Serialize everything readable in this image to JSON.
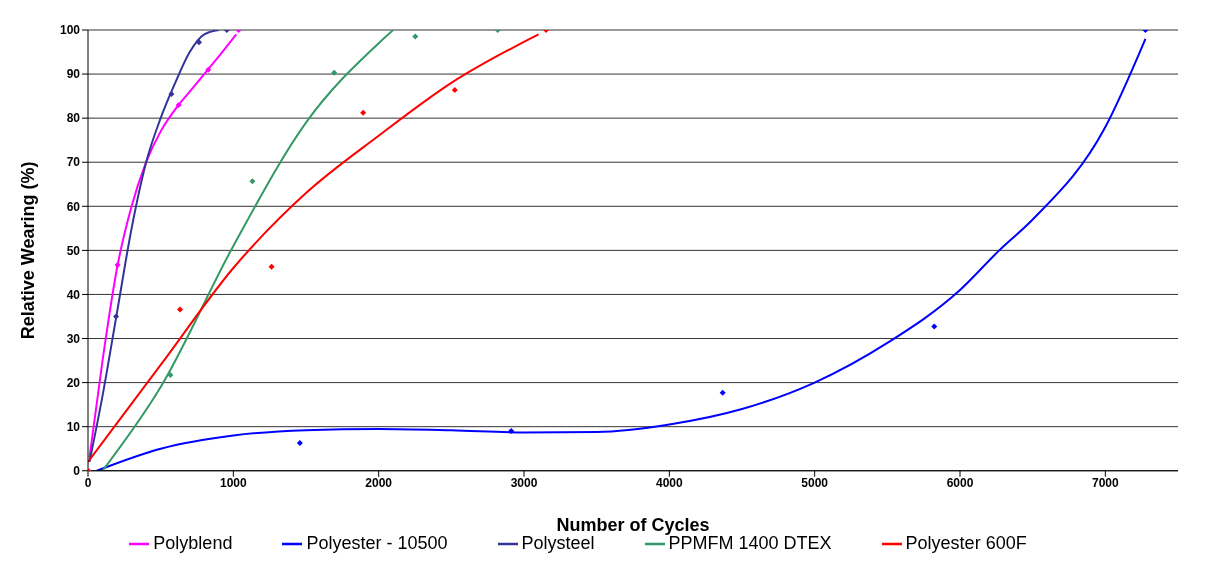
{
  "chart_data": {
    "type": "scatter",
    "xlabel": "Number of Cycles",
    "ylabel": "Relative Wearing (%)",
    "xlim": [
      0,
      7500
    ],
    "xticks": [
      0,
      1000,
      2000,
      3000,
      4000,
      5000,
      6000,
      7000
    ],
    "ylim": [
      0,
      100
    ],
    "yticks": [
      0,
      10,
      20,
      30,
      40,
      50,
      60,
      70,
      80,
      90,
      100
    ],
    "grid": "y",
    "legend": "bottom",
    "marker": "diamond",
    "series": [
      {
        "type": "line",
        "name": "Polyblend",
        "color": "#ff00ff",
        "marker": "none",
        "x": [
          10,
          100,
          200,
          300,
          400,
          500,
          600,
          700,
          800,
          900,
          1020
        ],
        "values": [
          3,
          25,
          46,
          60,
          70,
          77,
          82,
          86,
          90,
          94,
          99
        ]
      },
      {
        "type": "line",
        "name": "Polyester - 10500",
        "color": "#0000ff",
        "marker": "none",
        "x": [
          60,
          500,
          1000,
          1500,
          2000,
          2500,
          3000,
          3500,
          4000,
          4500,
          5000,
          5500,
          6000,
          6270,
          6500,
          7000,
          7276
        ],
        "values": [
          0,
          5,
          8,
          9.2,
          9.5,
          9.2,
          8.7,
          8.8,
          10.5,
          14,
          20,
          29,
          41,
          50,
          57,
          78,
          98
        ]
      },
      {
        "type": "line",
        "name": "Polysteel",
        "color": "#333399",
        "marker": "none",
        "x": [
          10,
          100,
          200,
          300,
          400,
          500,
          600,
          700,
          800,
          900
        ],
        "values": [
          2,
          17,
          36,
          55,
          70,
          80,
          88,
          95,
          99,
          100
        ]
      },
      {
        "type": "line",
        "name": "PPMFM 1400 DTEX",
        "color": "#339966",
        "marker": "none",
        "x": [
          100,
          500,
          1000,
          1500,
          2000,
          2100
        ],
        "values": [
          0,
          19,
          51,
          79,
          97,
          100
        ]
      },
      {
        "type": "line",
        "name": "Polyester 600F",
        "color": "#ff0000",
        "marker": "none",
        "x": [
          0,
          500,
          1000,
          1500,
          2000,
          2500,
          3100
        ],
        "values": [
          2,
          24,
          46,
          63,
          76,
          88,
          99
        ]
      },
      {
        "color": "#ff00ff",
        "x": [
          0,
          204,
          624,
          828,
          1036
        ],
        "values": [
          0,
          46.7,
          83,
          91,
          100
        ]
      },
      {
        "color": "#0000ff",
        "x": [
          0,
          1458,
          2912,
          4367,
          5823,
          7276
        ],
        "values": [
          0,
          6.3,
          9,
          17.7,
          32.7,
          100
        ]
      },
      {
        "color": "#333399",
        "x": [
          0,
          193,
          574,
          764,
          955
        ],
        "values": [
          0,
          35,
          85.5,
          97.2,
          100
        ]
      },
      {
        "color": "#339966",
        "x": [
          0,
          567,
          1131,
          1694,
          2252,
          2819
        ],
        "values": [
          0,
          21.7,
          65.7,
          90.3,
          98.5,
          100
        ]
      },
      {
        "color": "#ff0000",
        "x": [
          0,
          633,
          1263,
          1893,
          2524,
          3152
        ],
        "values": [
          0,
          36.6,
          46.3,
          81.2,
          86.4,
          100
        ]
      }
    ]
  }
}
